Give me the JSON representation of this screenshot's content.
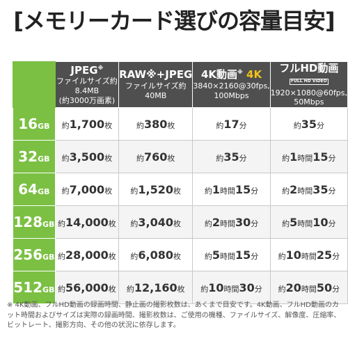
{
  "title": "[メモリーカード選びの容量目安]",
  "headers": [
    {
      "main": "JPEG",
      "sup": "※",
      "l2": "ファイルサイズ約8.4MB",
      "l3": "(約3000万画素)"
    },
    {
      "main": "RAW※+JPEG",
      "l2": "ファイルサイズ約40MB"
    },
    {
      "main": "4K動画",
      "sup": "※",
      "k4": "4K",
      "l2": "3840×2160@30fps,",
      "l3": "100Mbps"
    },
    {
      "main": "フルHD動画",
      "badge": "FULL HD VIDEO",
      "l2": "1920×1080@60fps,",
      "l3": "50Mbps"
    }
  ],
  "rows": [
    {
      "cap": "16",
      "unit": "GB",
      "jpeg": "1,700",
      "raw": "380",
      "k4h": "",
      "k4m": "17",
      "hdh": "",
      "hdm": "35"
    },
    {
      "cap": "32",
      "unit": "GB",
      "jpeg": "3,500",
      "raw": "760",
      "k4h": "",
      "k4m": "35",
      "hdh": "1",
      "hdm": "15"
    },
    {
      "cap": "64",
      "unit": "GB",
      "jpeg": "7,000",
      "raw": "1,520",
      "k4h": "1",
      "k4m": "15",
      "hdh": "2",
      "hdm": "35"
    },
    {
      "cap": "128",
      "unit": "GB",
      "jpeg": "14,000",
      "raw": "3,040",
      "k4h": "2",
      "k4m": "30",
      "hdh": "5",
      "hdm": "10"
    },
    {
      "cap": "256",
      "unit": "GB",
      "jpeg": "28,000",
      "raw": "6,080",
      "k4h": "5",
      "k4m": "15",
      "hdh": "10",
      "hdm": "25"
    },
    {
      "cap": "512",
      "unit": "GB",
      "jpeg": "56,000",
      "raw": "12,160",
      "k4h": "10",
      "k4m": "30",
      "hdh": "20",
      "hdm": "50"
    }
  ],
  "labels": {
    "approx": "約",
    "sheets": "枚",
    "hour": "時間",
    "min": "分"
  },
  "note": "※ 4K動画、フルHD動画の録画時間、静止画の撮影枚数は、あくまで目安です。4K動画、フルHD動画のカット時間およびサイズは実際の録画時間、撮影枚数は、ご使用の機種、ファイルサイズ、解像度、圧縮率、ビットレート、撮影方向、その他の状況に依存します。",
  "colors": {
    "green": "#7bc043",
    "header": "#4f4f4f",
    "accent4k": "#f0c419"
  }
}
